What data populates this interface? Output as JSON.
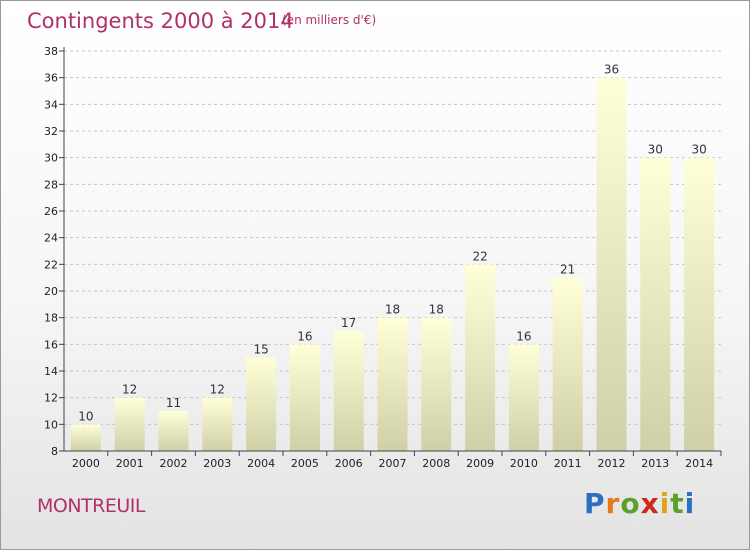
{
  "header": {
    "title": "Contingents 2000 à 2014",
    "subtitle": "(en milliers d'€)"
  },
  "footer": {
    "town": "MONTREUIL",
    "brand": "Proxiti"
  },
  "colors": {
    "text_accent": "#b0306a",
    "bar_top": "#ffffd8",
    "bar_bottom": "#cfcfa8",
    "brand_letters": [
      "#2a6fc0",
      "#e07a1c",
      "#5aa02c",
      "#d0281e",
      "#e0a51c",
      "#5aa02c",
      "#2a6fc0"
    ]
  },
  "chart_data": {
    "type": "bar",
    "categories": [
      "2000",
      "2001",
      "2002",
      "2003",
      "2004",
      "2005",
      "2006",
      "2007",
      "2008",
      "2009",
      "2010",
      "2011",
      "2012",
      "2013",
      "2014"
    ],
    "values": [
      10,
      12,
      11,
      12,
      15,
      16,
      17,
      18,
      18,
      22,
      16,
      21,
      36,
      30,
      30
    ],
    "ylim": [
      8,
      38
    ],
    "yticks": [
      8,
      10,
      12,
      14,
      16,
      18,
      20,
      22,
      24,
      26,
      28,
      30,
      32,
      34,
      36,
      38
    ],
    "grid": "horizontal-dashed",
    "legend": "none"
  }
}
